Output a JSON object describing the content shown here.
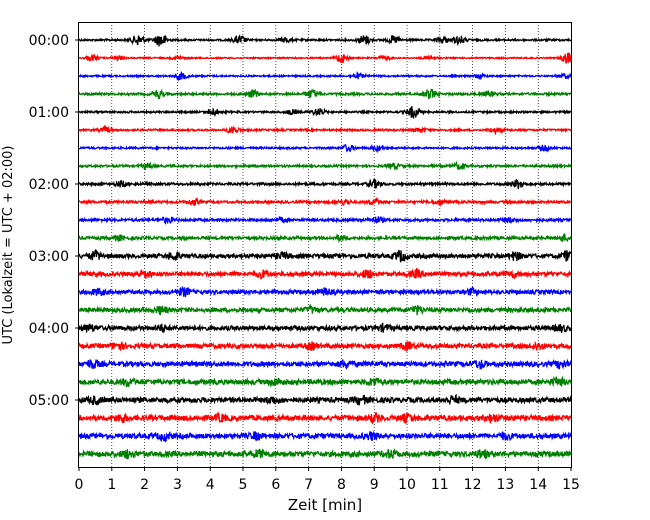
{
  "chart_data": {
    "type": "line",
    "title": "",
    "xlabel": "Zeit  [min]",
    "ylabel": "UTC (Lokalzeit = UTC + 02:00)",
    "xlim": [
      0,
      15
    ],
    "x_ticks": [
      "0",
      "1",
      "2",
      "3",
      "4",
      "5",
      "6",
      "7",
      "8",
      "9",
      "10",
      "11",
      "12",
      "13",
      "14",
      "15"
    ],
    "y_ticks": [
      "00:00",
      "01:00",
      "02:00",
      "03:00",
      "04:00",
      "05:00"
    ],
    "grid": "vertical dotted lines at each minute",
    "trace_interval_min": 15,
    "trace_count": 24,
    "colors": [
      "#000000",
      "#ff0000",
      "#0000ff",
      "#008000"
    ],
    "traces": [
      {
        "start": "00:00",
        "color": "#000000",
        "level": 0.35,
        "events": [
          [
            1.8,
            2.0
          ],
          [
            2.5,
            2.5
          ],
          [
            4.9,
            1.5
          ],
          [
            6.3,
            0.8
          ],
          [
            8.7,
            1.8
          ],
          [
            9.6,
            1.4
          ],
          [
            11.1,
            1.2
          ],
          [
            11.6,
            1.5
          ]
        ]
      },
      {
        "start": "00:15",
        "color": "#ff0000",
        "level": 0.25,
        "events": [
          [
            0.4,
            1.0
          ],
          [
            1.2,
            0.8
          ],
          [
            3.0,
            0.6
          ],
          [
            8.0,
            1.8
          ],
          [
            9.3,
            0.8
          ],
          [
            10.7,
            0.8
          ],
          [
            14.9,
            2.2
          ]
        ]
      },
      {
        "start": "00:30",
        "color": "#0000ff",
        "level": 0.3,
        "events": [
          [
            3.1,
            1.4
          ],
          [
            8.5,
            1.0
          ],
          [
            12.2,
            0.7
          ],
          [
            14.8,
            0.8
          ]
        ]
      },
      {
        "start": "00:45",
        "color": "#008000",
        "level": 0.4,
        "events": [
          [
            2.4,
            1.5
          ],
          [
            5.3,
            1.3
          ],
          [
            7.1,
            1.6
          ],
          [
            10.7,
            1.8
          ],
          [
            12.5,
            1.0
          ]
        ]
      },
      {
        "start": "01:00",
        "color": "#000000",
        "level": 0.35,
        "events": [
          [
            4.1,
            1.2
          ],
          [
            6.5,
            0.8
          ],
          [
            7.3,
            1.3
          ],
          [
            10.2,
            2.2
          ]
        ]
      },
      {
        "start": "01:15",
        "color": "#ff0000",
        "level": 0.35,
        "events": [
          [
            0.8,
            1.0
          ],
          [
            4.7,
            1.2
          ],
          [
            10.4,
            0.8
          ],
          [
            12.7,
            1.0
          ]
        ]
      },
      {
        "start": "01:30",
        "color": "#0000ff",
        "level": 0.35,
        "events": [
          [
            8.2,
            1.2
          ],
          [
            9.1,
            0.9
          ],
          [
            14.2,
            1.0
          ]
        ]
      },
      {
        "start": "01:45",
        "color": "#008000",
        "level": 0.4,
        "events": [
          [
            2.1,
            0.8
          ],
          [
            9.6,
            0.9
          ],
          [
            11.6,
            1.1
          ]
        ]
      },
      {
        "start": "02:00",
        "color": "#000000",
        "level": 0.45,
        "events": [
          [
            1.3,
            1.0
          ],
          [
            9.0,
            1.4
          ],
          [
            13.4,
            1.6
          ]
        ]
      },
      {
        "start": "02:15",
        "color": "#ff0000",
        "level": 0.45,
        "events": [
          [
            3.5,
            1.2
          ],
          [
            8.1,
            1.0
          ],
          [
            9.0,
            1.0
          ],
          [
            11.0,
            0.8
          ]
        ]
      },
      {
        "start": "02:30",
        "color": "#0000ff",
        "level": 0.5,
        "events": [
          [
            2.7,
            1.0
          ],
          [
            6.2,
            0.8
          ],
          [
            9.1,
            1.0
          ],
          [
            13.1,
            0.8
          ]
        ]
      },
      {
        "start": "02:45",
        "color": "#008000",
        "level": 0.55,
        "events": [
          [
            1.2,
            0.9
          ],
          [
            8.0,
            0.9
          ],
          [
            14.8,
            1.2
          ]
        ]
      },
      {
        "start": "03:00",
        "color": "#000000",
        "level": 0.8,
        "events": [
          [
            0.5,
            1.4
          ],
          [
            2.9,
            1.2
          ],
          [
            6.2,
            1.0
          ],
          [
            9.8,
            1.8
          ],
          [
            13.3,
            1.3
          ],
          [
            14.9,
            1.6
          ]
        ]
      },
      {
        "start": "03:15",
        "color": "#ff0000",
        "level": 0.8,
        "events": [
          [
            2.0,
            1.2
          ],
          [
            5.6,
            1.1
          ],
          [
            8.8,
            1.3
          ],
          [
            10.3,
            1.2
          ],
          [
            13.2,
            1.0
          ]
        ]
      },
      {
        "start": "03:30",
        "color": "#0000ff",
        "level": 0.75,
        "events": [
          [
            0.6,
            1.0
          ],
          [
            3.2,
            1.3
          ],
          [
            7.5,
            1.1
          ],
          [
            12.0,
            1.0
          ]
        ]
      },
      {
        "start": "03:45",
        "color": "#008000",
        "level": 0.8,
        "events": [
          [
            2.5,
            1.2
          ],
          [
            7.1,
            1.0
          ],
          [
            10.3,
            1.3
          ]
        ]
      },
      {
        "start": "04:00",
        "color": "#000000",
        "level": 0.85,
        "events": [
          [
            0.3,
            1.1
          ],
          [
            2.5,
            1.0
          ],
          [
            9.3,
            1.0
          ],
          [
            14.7,
            1.0
          ]
        ]
      },
      {
        "start": "04:15",
        "color": "#ff0000",
        "level": 0.85,
        "events": [
          [
            1.2,
            1.2
          ],
          [
            7.1,
            1.0
          ],
          [
            10.0,
            1.1
          ],
          [
            14.0,
            1.0
          ]
        ]
      },
      {
        "start": "04:30",
        "color": "#0000ff",
        "level": 0.9,
        "events": [
          [
            0.4,
            1.3
          ],
          [
            8.1,
            1.1
          ],
          [
            12.2,
            1.2
          ],
          [
            14.7,
            1.2
          ]
        ]
      },
      {
        "start": "04:45",
        "color": "#008000",
        "level": 0.95,
        "events": [
          [
            1.5,
            1.2
          ],
          [
            6.0,
            1.0
          ],
          [
            9.0,
            1.1
          ],
          [
            14.6,
            1.2
          ]
        ]
      },
      {
        "start": "05:00",
        "color": "#000000",
        "level": 0.95,
        "events": [
          [
            0.5,
            1.1
          ],
          [
            5.9,
            1.0
          ],
          [
            8.6,
            1.3
          ],
          [
            11.4,
            1.2
          ]
        ]
      },
      {
        "start": "05:15",
        "color": "#ff0000",
        "level": 1.0,
        "events": [
          [
            1.3,
            1.2
          ],
          [
            4.3,
            1.0
          ],
          [
            9.0,
            1.2
          ],
          [
            10.0,
            1.1
          ],
          [
            12.6,
            1.2
          ]
        ]
      },
      {
        "start": "05:30",
        "color": "#0000ff",
        "level": 0.95,
        "events": [
          [
            2.6,
            1.1
          ],
          [
            5.4,
            1.0
          ],
          [
            8.9,
            1.1
          ],
          [
            13.0,
            1.0
          ]
        ]
      },
      {
        "start": "05:45",
        "color": "#008000",
        "level": 1.0,
        "events": [
          [
            1.5,
            1.2
          ],
          [
            5.5,
            1.1
          ],
          [
            9.5,
            1.1
          ],
          [
            12.3,
            1.2
          ]
        ]
      }
    ]
  }
}
